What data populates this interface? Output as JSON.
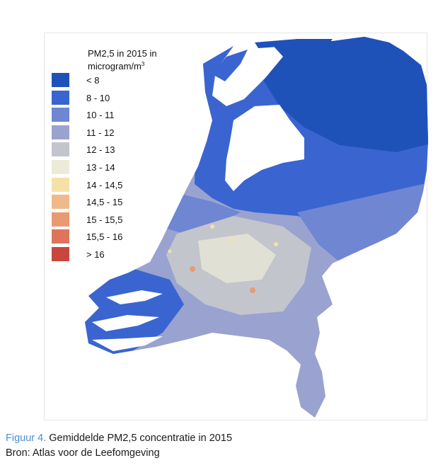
{
  "legend": {
    "title_line1": "PM2,5 in 2015  in",
    "title_line2_prefix": "microgram/m",
    "title_line2_sup": "3",
    "items": [
      {
        "label": "< 8",
        "color": "#1f52b8"
      },
      {
        "label": "8 - 10",
        "color": "#3a65d0"
      },
      {
        "label": "10 - 11",
        "color": "#6f86d3"
      },
      {
        "label": " 11 - 12",
        "color": "#9aa3cf"
      },
      {
        "label": "12 - 13",
        "color": "#c2c5cc"
      },
      {
        "label": "13 - 14",
        "color": "#ecebd8"
      },
      {
        "label": "14 - 14,5",
        "color": "#f5e1a8"
      },
      {
        "label": "14,5 - 15",
        "color": "#f0b98a"
      },
      {
        "label": "15 - 15,5",
        "color": "#ea9a72"
      },
      {
        "label": "15,5 - 16",
        "color": "#de745c"
      },
      {
        "label": "> 16",
        "color": "#c8463e"
      }
    ]
  },
  "caption": {
    "figure_label": "Figuur 4.",
    "figure_text": " Gemiddelde PM2,5 concentratie in 2015",
    "source": "Bron: Atlas voor de Leefomgeving"
  }
}
